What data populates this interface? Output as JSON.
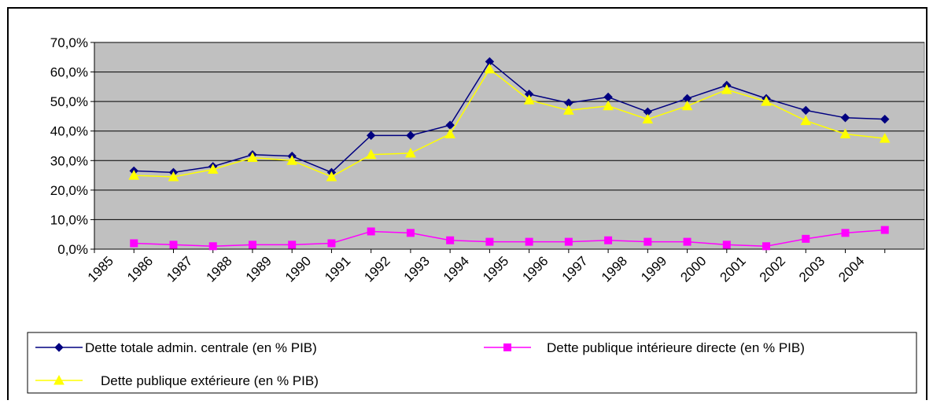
{
  "chart_data": {
    "type": "line",
    "categories": [
      "1985",
      "1986",
      "1987",
      "1988",
      "1989",
      "1990",
      "1991",
      "1992",
      "1993",
      "1994",
      "1995",
      "1996",
      "1997",
      "1998",
      "1999",
      "2000",
      "2001",
      "2002",
      "2003",
      "2004"
    ],
    "series": [
      {
        "name": "Dette totale admin. centrale (en % PIB)",
        "color": "#000080",
        "marker": "diamond",
        "values": [
          26.5,
          26,
          28,
          32,
          31.5,
          26,
          38.5,
          38.5,
          42,
          63.5,
          52.5,
          49.5,
          51.5,
          46.5,
          51,
          55.5,
          51,
          47,
          44.5,
          44
        ]
      },
      {
        "name": "Dette publique intérieure directe (en % PIB)",
        "color": "#ff00ff",
        "marker": "square",
        "values": [
          2,
          1.5,
          1,
          1.5,
          1.5,
          2,
          6,
          5.5,
          3,
          2.5,
          2.5,
          2.5,
          3,
          2.5,
          2.5,
          1.5,
          1,
          3.5,
          5.5,
          6.5
        ]
      },
      {
        "name": "Dette publique extérieure (en % PIB)",
        "color": "#ffff00",
        "marker": "triangle",
        "values": [
          25,
          24.5,
          27,
          31,
          30,
          24.5,
          32,
          32.5,
          39,
          61,
          50.5,
          47,
          48.5,
          44,
          48.5,
          54,
          50,
          43.5,
          39,
          37.5
        ]
      }
    ],
    "ylim": [
      0,
      70
    ],
    "yticks": [
      {
        "value": 0,
        "label": "0,0%"
      },
      {
        "value": 10,
        "label": "10,0%"
      },
      {
        "value": 20,
        "label": "20,0%"
      },
      {
        "value": 30,
        "label": "30,0%"
      },
      {
        "value": 40,
        "label": "40,0%"
      },
      {
        "value": 50,
        "label": "50,0%"
      },
      {
        "value": 60,
        "label": "60,0%"
      },
      {
        "value": 70,
        "label": "70,0%"
      }
    ],
    "grid": true,
    "legend": "bottom",
    "plot_background": "#c0c0c0"
  }
}
